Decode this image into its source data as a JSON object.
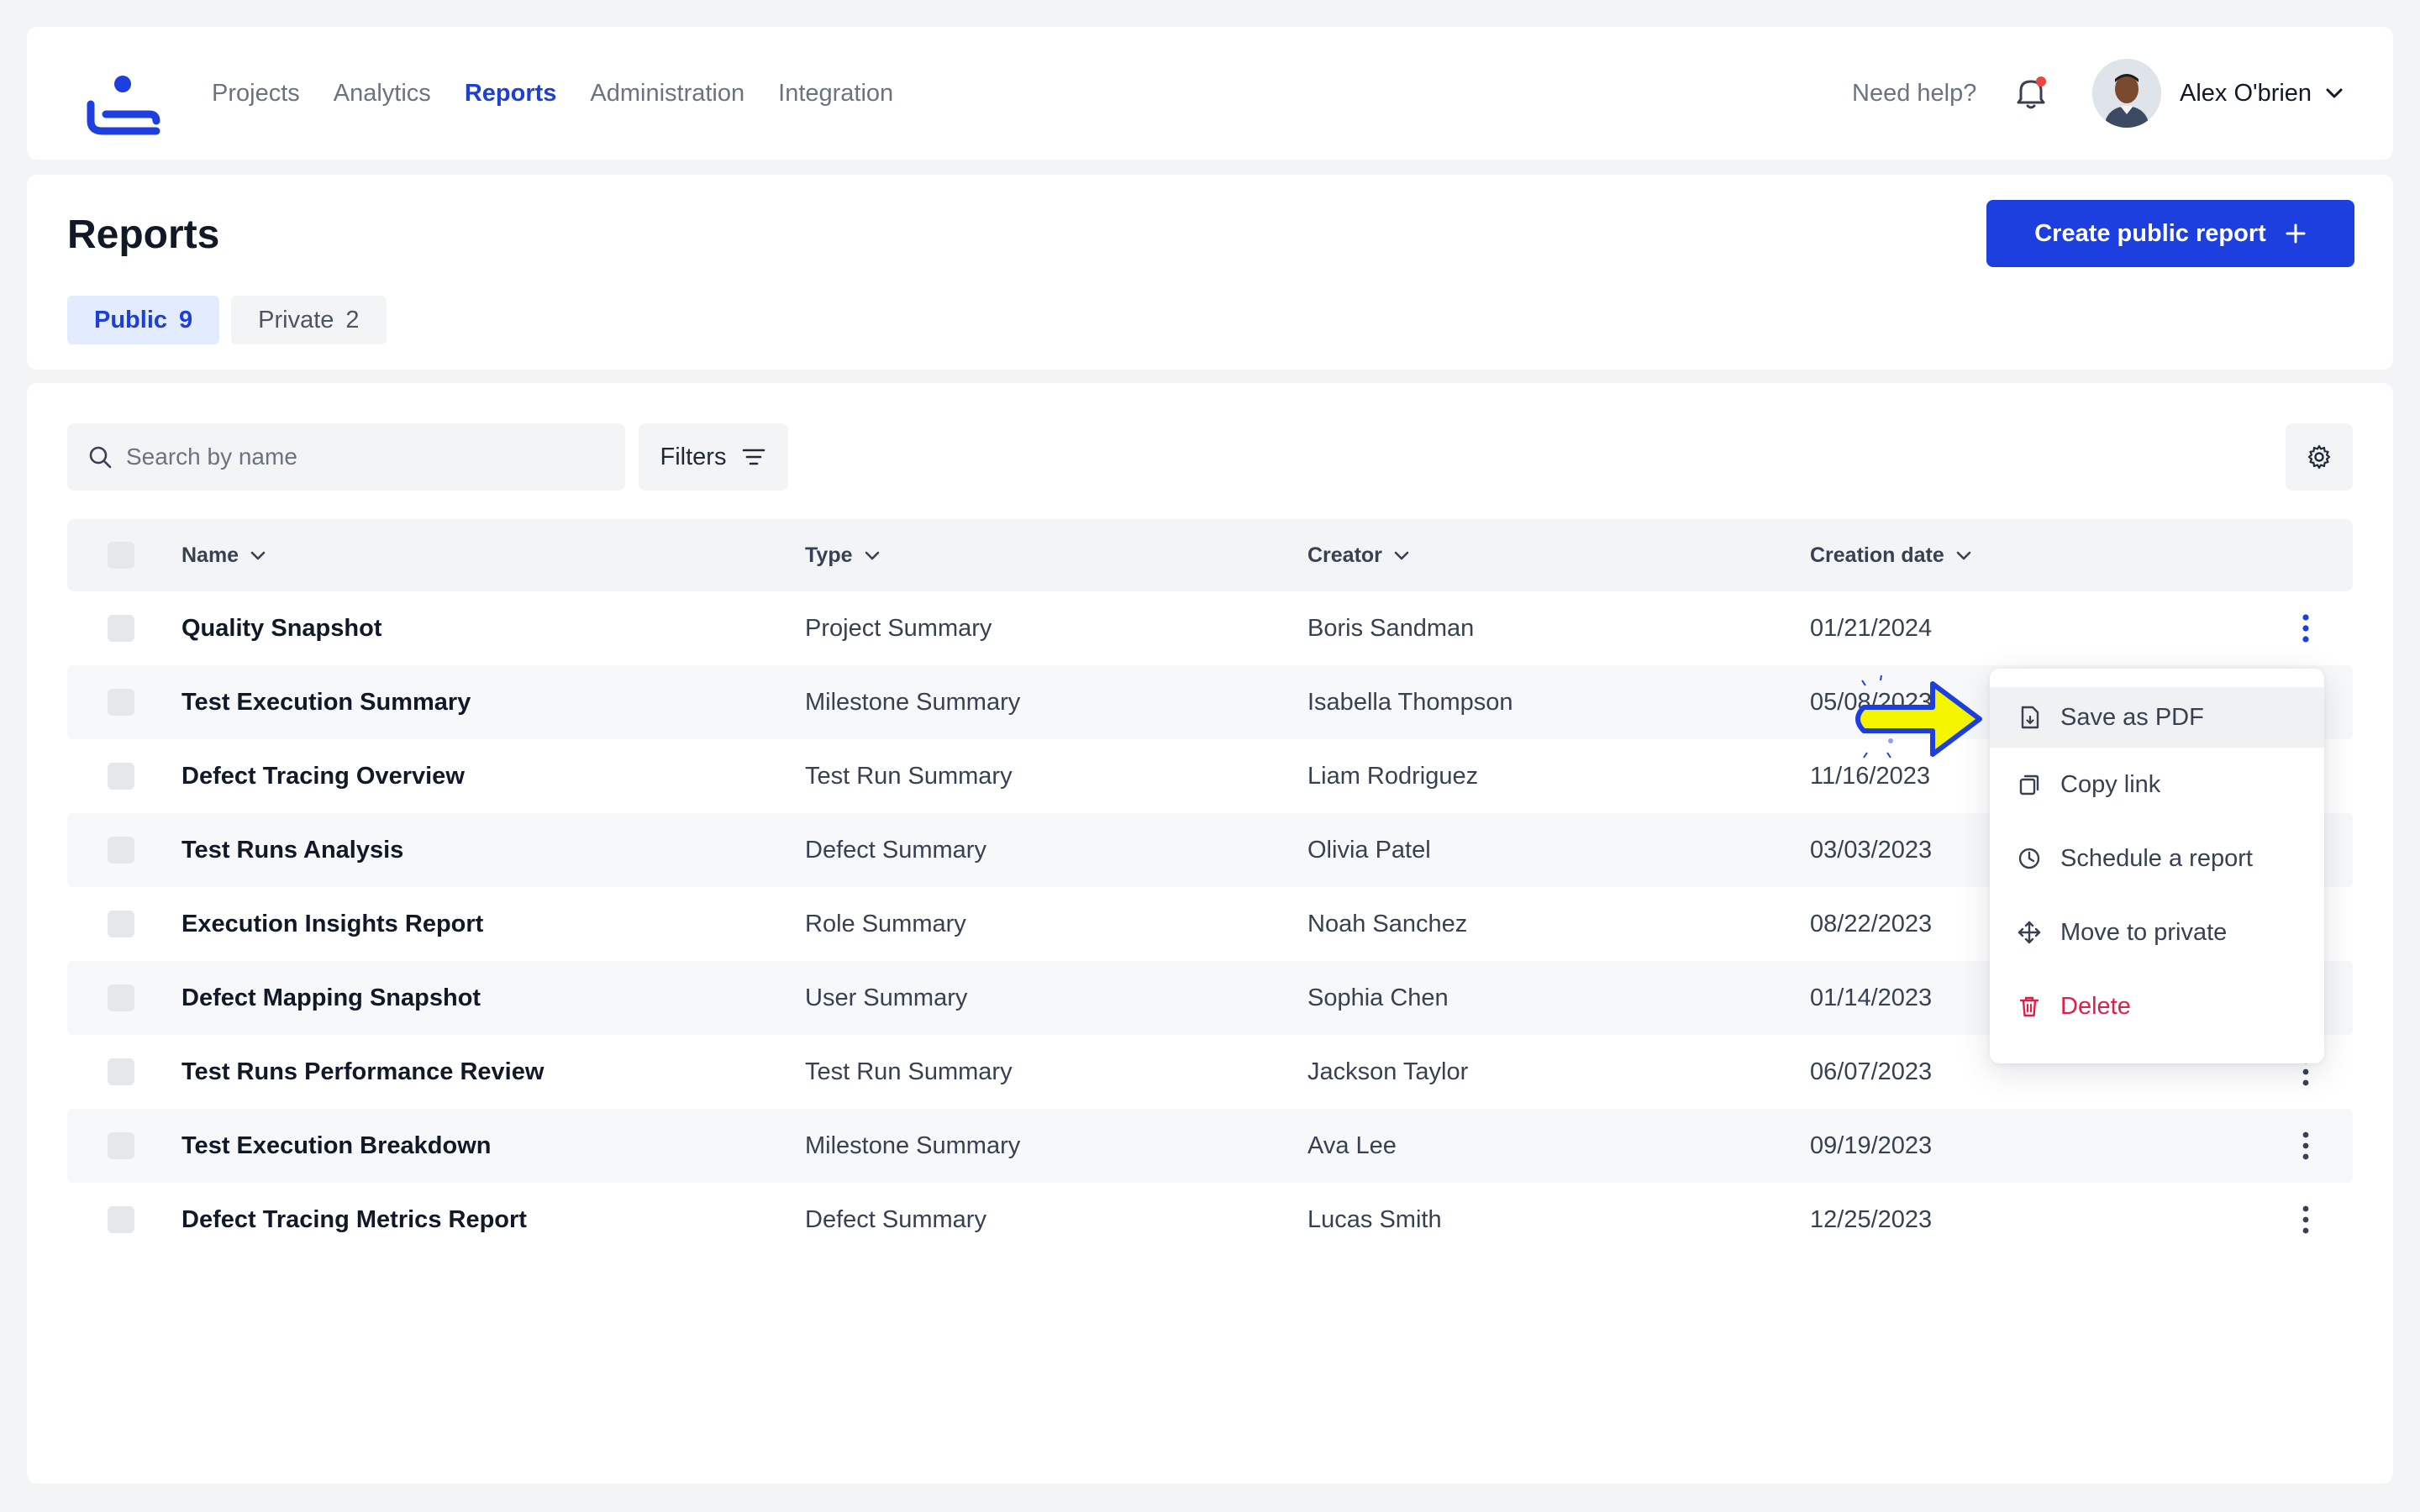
{
  "nav": {
    "items": [
      {
        "label": "Projects",
        "active": false
      },
      {
        "label": "Analytics",
        "active": false
      },
      {
        "label": "Reports",
        "active": true
      },
      {
        "label": "Administration",
        "active": false
      },
      {
        "label": "Integration",
        "active": false
      }
    ],
    "help_label": "Need help?",
    "user_name": "Alex O'brien",
    "notification_dot_color": "#ef4444"
  },
  "header": {
    "title": "Reports",
    "create_button_label": "Create public report",
    "tabs": [
      {
        "label": "Public",
        "count": "9",
        "active": true
      },
      {
        "label": "Private",
        "count": "2",
        "active": false
      }
    ]
  },
  "toolbar": {
    "search_placeholder": "Search by name",
    "filters_label": "Filters"
  },
  "table": {
    "columns": [
      "Name",
      "Type",
      "Creator",
      "Creation date"
    ],
    "rows": [
      {
        "name": "Quality Snapshot",
        "type": "Project Summary",
        "creator": "Boris Sandman",
        "date": "01/21/2024"
      },
      {
        "name": "Test Execution Summary",
        "type": "Milestone Summary",
        "creator": "Isabella Thompson",
        "date": "05/08/2023"
      },
      {
        "name": "Defect Tracing Overview",
        "type": "Test Run Summary",
        "creator": "Liam Rodriguez",
        "date": "11/16/2023"
      },
      {
        "name": "Test Runs Analysis",
        "type": "Defect Summary",
        "creator": "Olivia Patel",
        "date": "03/03/2023"
      },
      {
        "name": "Execution Insights Report",
        "type": "Role Summary",
        "creator": "Noah Sanchez",
        "date": "08/22/2023"
      },
      {
        "name": "Defect Mapping Snapshot",
        "type": "User Summary",
        "creator": "Sophia Chen",
        "date": "01/14/2023"
      },
      {
        "name": "Test Runs Performance Review",
        "type": "Test Run Summary",
        "creator": "Jackson Taylor",
        "date": "06/07/2023"
      },
      {
        "name": "Test Execution Breakdown",
        "type": "Milestone Summary",
        "creator": "Ava Lee",
        "date": "09/19/2023"
      },
      {
        "name": "Defect Tracing Metrics Report",
        "type": "Defect Summary",
        "creator": "Lucas Smith",
        "date": "12/25/2023"
      }
    ]
  },
  "context_menu": {
    "items": [
      {
        "label": "Save as PDF",
        "icon": "save-pdf-icon"
      },
      {
        "label": "Copy link",
        "icon": "copy-icon"
      },
      {
        "label": "Schedule a report",
        "icon": "clock-icon"
      },
      {
        "label": "Move to private",
        "icon": "move-icon"
      },
      {
        "label": "Delete",
        "icon": "trash-icon"
      }
    ]
  },
  "colors": {
    "accent": "#1d3fe0",
    "danger": "#e11d48",
    "pointer_arrow": "#f5f500"
  }
}
